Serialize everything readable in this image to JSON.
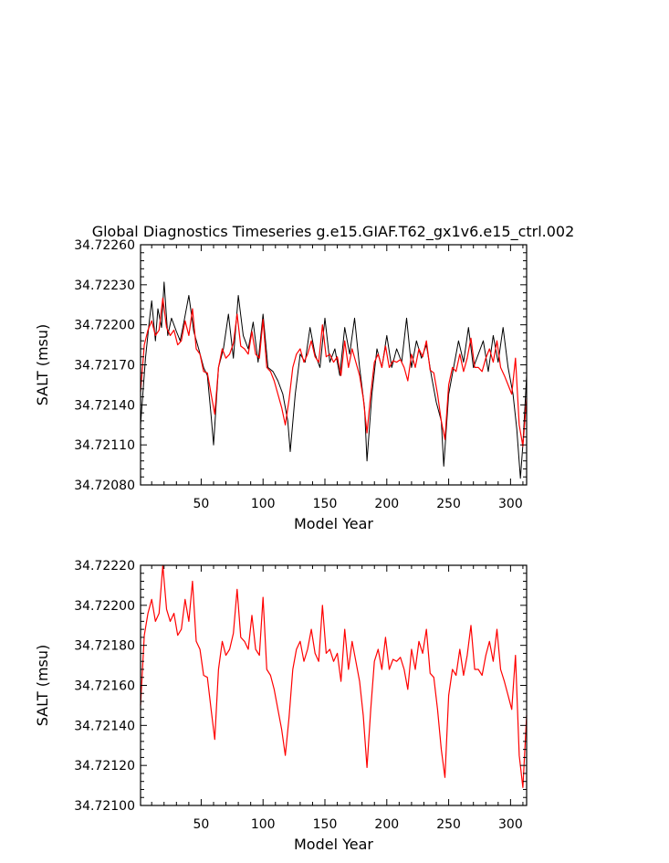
{
  "title": "Global Diagnostics Timeseries g.e15.GIAF.T62_gx1v6.e15_ctrl.002",
  "colors": {
    "raw": "#000000",
    "smooth": "#ff0000",
    "axis": "#000000"
  },
  "chart_data": [
    {
      "type": "line",
      "xlabel": "Model Year",
      "ylabel": "SALT (msu)",
      "xlim": [
        1,
        313
      ],
      "ylim": [
        34.7208,
        34.7226
      ],
      "xticks": [
        50,
        100,
        150,
        200,
        250,
        300
      ],
      "xtick_labels": [
        "50",
        "100",
        "150",
        "200",
        "250",
        "300"
      ],
      "yticks": [
        34.7208,
        34.7211,
        34.7214,
        34.7217,
        34.722,
        34.7223,
        34.7226
      ],
      "ytick_labels": [
        "34.72080",
        "34.72110",
        "34.72140",
        "34.72170",
        "34.72200",
        "34.72230",
        "34.72260"
      ],
      "series": [
        {
          "role": "raw-monthly",
          "color": "#000000",
          "x": [
            1,
            3,
            5,
            8,
            10,
            13,
            15,
            18,
            20,
            23,
            26,
            30,
            33,
            36,
            40,
            44,
            48,
            52,
            55,
            58,
            60,
            64,
            68,
            72,
            76,
            80,
            84,
            88,
            92,
            96,
            100,
            104,
            108,
            112,
            116,
            120,
            122,
            126,
            130,
            134,
            138,
            142,
            146,
            150,
            154,
            158,
            162,
            166,
            170,
            174,
            178,
            182,
            184,
            188,
            192,
            196,
            200,
            204,
            208,
            212,
            216,
            220,
            224,
            228,
            232,
            236,
            240,
            244,
            246,
            250,
            254,
            258,
            262,
            266,
            270,
            274,
            278,
            282,
            286,
            290,
            294,
            298,
            302,
            305,
            308,
            310,
            313
          ],
          "y": [
            34.72125,
            34.7215,
            34.72175,
            34.72202,
            34.72218,
            34.72188,
            34.72212,
            34.72198,
            34.72232,
            34.72192,
            34.72205,
            34.72195,
            34.72188,
            34.72202,
            34.72222,
            34.72195,
            34.72182,
            34.72168,
            34.72162,
            34.72132,
            34.7211,
            34.72168,
            34.72182,
            34.72208,
            34.72175,
            34.72222,
            34.72192,
            34.72182,
            34.72202,
            34.72172,
            34.72208,
            34.72168,
            34.72165,
            34.72158,
            34.72148,
            34.72128,
            34.72105,
            34.72148,
            34.72178,
            34.72172,
            34.72198,
            34.72178,
            34.72168,
            34.72205,
            34.72172,
            34.72182,
            34.72162,
            34.72198,
            34.72178,
            34.72205,
            34.72168,
            34.72138,
            34.72098,
            34.72148,
            34.72182,
            34.72168,
            34.72192,
            34.72168,
            34.72182,
            34.72172,
            34.72205,
            34.72168,
            34.72188,
            34.72175,
            34.72185,
            34.72162,
            34.72142,
            34.72128,
            34.72094,
            34.72148,
            34.72168,
            34.72188,
            34.72172,
            34.72198,
            34.72168,
            34.72178,
            34.72188,
            34.72165,
            34.72192,
            34.72172,
            34.72198,
            34.72168,
            34.72148,
            34.72122,
            34.72085,
            34.7211,
            34.72162
          ]
        },
        {
          "role": "annual-mean",
          "color": "#ff0000",
          "x": [
            1,
            4,
            7,
            10,
            13,
            16,
            19,
            22,
            25,
            28,
            31,
            34,
            37,
            40,
            43,
            46,
            49,
            52,
            55,
            58,
            61,
            64,
            67,
            70,
            73,
            76,
            79,
            82,
            85,
            88,
            91,
            94,
            97,
            100,
            103,
            106,
            109,
            112,
            115,
            118,
            121,
            124,
            127,
            130,
            133,
            136,
            139,
            142,
            145,
            148,
            151,
            154,
            157,
            160,
            163,
            166,
            169,
            172,
            175,
            178,
            181,
            184,
            187,
            190,
            193,
            196,
            199,
            202,
            205,
            208,
            211,
            214,
            217,
            220,
            223,
            226,
            229,
            232,
            235,
            238,
            241,
            244,
            247,
            250,
            253,
            256,
            259,
            262,
            265,
            268,
            271,
            274,
            277,
            280,
            283,
            286,
            289,
            292,
            295,
            298,
            301,
            304,
            307,
            310,
            313
          ],
          "y": [
            34.7215,
            34.72185,
            34.72196,
            34.72203,
            34.72192,
            34.72196,
            34.7222,
            34.72198,
            34.72192,
            34.72196,
            34.72185,
            34.72188,
            34.72203,
            34.72192,
            34.72212,
            34.72182,
            34.72178,
            34.72165,
            34.72164,
            34.72148,
            34.72133,
            34.72168,
            34.72182,
            34.72175,
            34.72178,
            34.72186,
            34.72208,
            34.72184,
            34.72182,
            34.72178,
            34.72195,
            34.72178,
            34.72175,
            34.72204,
            34.72168,
            34.72165,
            34.72158,
            34.72148,
            34.72138,
            34.72125,
            34.72144,
            34.72168,
            34.72178,
            34.72182,
            34.72172,
            34.72178,
            34.72188,
            34.72176,
            34.72172,
            34.722,
            34.72176,
            34.72178,
            34.72172,
            34.72176,
            34.72162,
            34.72188,
            34.72168,
            34.72182,
            34.72172,
            34.72162,
            34.72145,
            34.72119,
            34.72148,
            34.72172,
            34.72178,
            34.72168,
            34.72184,
            34.72168,
            34.72173,
            34.72172,
            34.72174,
            34.72168,
            34.72158,
            34.72178,
            34.72168,
            34.72182,
            34.72176,
            34.72188,
            34.72166,
            34.72164,
            34.72148,
            34.72128,
            34.72114,
            34.72155,
            34.72168,
            34.72165,
            34.72178,
            34.72165,
            34.72175,
            34.7219,
            34.72168,
            34.72168,
            34.72165,
            34.72175,
            34.72182,
            34.72172,
            34.72188,
            34.72168,
            34.72162,
            34.72155,
            34.72148,
            34.72175,
            34.72125,
            34.72109,
            34.72145
          ]
        }
      ]
    },
    {
      "type": "line",
      "xlabel": "Model Year",
      "ylabel": "SALT (msu)",
      "xlim": [
        1,
        313
      ],
      "ylim": [
        34.721,
        34.7222
      ],
      "xticks": [
        50,
        100,
        150,
        200,
        250,
        300
      ],
      "xtick_labels": [
        "50",
        "100",
        "150",
        "200",
        "250",
        "300"
      ],
      "yticks": [
        34.721,
        34.7212,
        34.7214,
        34.7216,
        34.7218,
        34.722,
        34.7222
      ],
      "ytick_labels": [
        "34.72100",
        "34.72120",
        "34.72140",
        "34.72160",
        "34.72180",
        "34.72200",
        "34.72220"
      ],
      "series": [
        {
          "role": "annual-mean",
          "color": "#ff0000",
          "x": [
            1,
            4,
            7,
            10,
            13,
            16,
            19,
            22,
            25,
            28,
            31,
            34,
            37,
            40,
            43,
            46,
            49,
            52,
            55,
            58,
            61,
            64,
            67,
            70,
            73,
            76,
            79,
            82,
            85,
            88,
            91,
            94,
            97,
            100,
            103,
            106,
            109,
            112,
            115,
            118,
            121,
            124,
            127,
            130,
            133,
            136,
            139,
            142,
            145,
            148,
            151,
            154,
            157,
            160,
            163,
            166,
            169,
            172,
            175,
            178,
            181,
            184,
            187,
            190,
            193,
            196,
            199,
            202,
            205,
            208,
            211,
            214,
            217,
            220,
            223,
            226,
            229,
            232,
            235,
            238,
            241,
            244,
            247,
            250,
            253,
            256,
            259,
            262,
            265,
            268,
            271,
            274,
            277,
            280,
            283,
            286,
            289,
            292,
            295,
            298,
            301,
            304,
            307,
            310,
            313
          ],
          "y": [
            34.7215,
            34.72185,
            34.72196,
            34.72203,
            34.72192,
            34.72196,
            34.7222,
            34.72198,
            34.72192,
            34.72196,
            34.72185,
            34.72188,
            34.72203,
            34.72192,
            34.72212,
            34.72182,
            34.72178,
            34.72165,
            34.72164,
            34.72148,
            34.72133,
            34.72168,
            34.72182,
            34.72175,
            34.72178,
            34.72186,
            34.72208,
            34.72184,
            34.72182,
            34.72178,
            34.72195,
            34.72178,
            34.72175,
            34.72204,
            34.72168,
            34.72165,
            34.72158,
            34.72148,
            34.72138,
            34.72125,
            34.72144,
            34.72168,
            34.72178,
            34.72182,
            34.72172,
            34.72178,
            34.72188,
            34.72176,
            34.72172,
            34.722,
            34.72176,
            34.72178,
            34.72172,
            34.72176,
            34.72162,
            34.72188,
            34.72168,
            34.72182,
            34.72172,
            34.72162,
            34.72145,
            34.72119,
            34.72148,
            34.72172,
            34.72178,
            34.72168,
            34.72184,
            34.72168,
            34.72173,
            34.72172,
            34.72174,
            34.72168,
            34.72158,
            34.72178,
            34.72168,
            34.72182,
            34.72176,
            34.72188,
            34.72166,
            34.72164,
            34.72148,
            34.72128,
            34.72114,
            34.72155,
            34.72168,
            34.72165,
            34.72178,
            34.72165,
            34.72175,
            34.7219,
            34.72168,
            34.72168,
            34.72165,
            34.72175,
            34.72182,
            34.72172,
            34.72188,
            34.72168,
            34.72162,
            34.72155,
            34.72148,
            34.72175,
            34.72125,
            34.72109,
            34.72145
          ]
        }
      ]
    }
  ]
}
